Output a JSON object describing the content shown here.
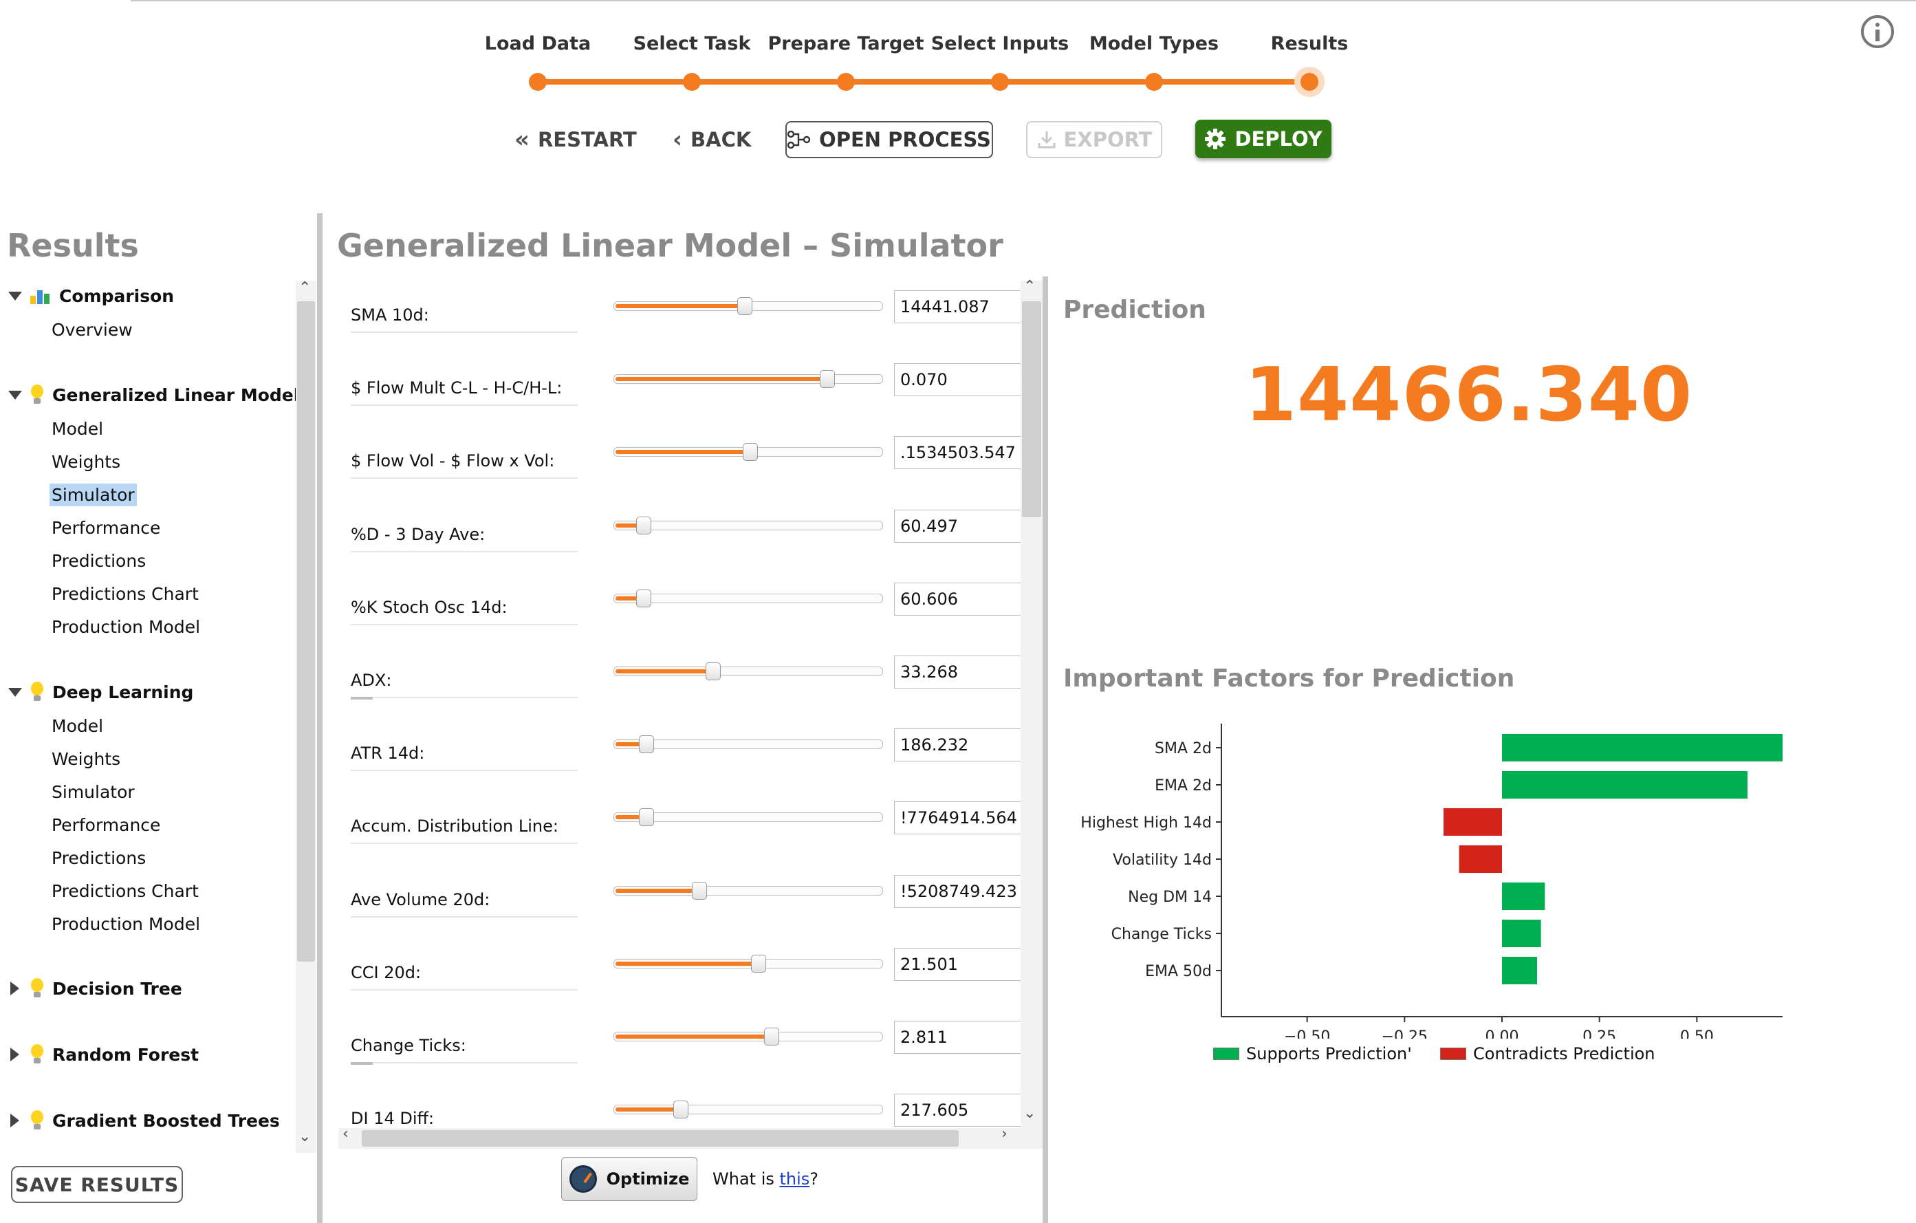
{
  "wizard": {
    "steps": [
      {
        "label": "Load Data"
      },
      {
        "label": "Select Task"
      },
      {
        "label": "Prepare Target"
      },
      {
        "label": "Select Inputs"
      },
      {
        "label": "Model Types"
      },
      {
        "label": "Results"
      }
    ],
    "current_step": "Results"
  },
  "toolbar": {
    "restart_label": "RESTART",
    "back_label": "BACK",
    "open_process_label": "OPEN PROCESS",
    "export_label": "EXPORT",
    "deploy_label": "DEPLOY",
    "accent_color": "#f47b20",
    "deploy_color": "#2f7a12"
  },
  "sidebar": {
    "title": "Results",
    "groups": [
      {
        "label": "Comparison",
        "icon": "comparison-icon",
        "expanded": true,
        "items": [
          "Overview"
        ]
      },
      {
        "label": "Generalized Linear Model",
        "icon": "lightbulb-icon",
        "expanded": true,
        "items": [
          "Model",
          "Weights",
          "Simulator",
          "Performance",
          "Predictions",
          "Predictions Chart",
          "Production Model"
        ]
      },
      {
        "label": "Deep Learning",
        "icon": "lightbulb-icon",
        "expanded": true,
        "items": [
          "Model",
          "Weights",
          "Simulator",
          "Performance",
          "Predictions",
          "Predictions Chart",
          "Production Model"
        ]
      },
      {
        "label": "Decision Tree",
        "icon": "lightbulb-icon",
        "expanded": false,
        "items": []
      },
      {
        "label": "Random Forest",
        "icon": "lightbulb-icon",
        "expanded": false,
        "items": []
      },
      {
        "label": "Gradient Boosted Trees",
        "icon": "lightbulb-icon",
        "expanded": false,
        "items": []
      }
    ],
    "selected": "Generalized Linear Model / Simulator",
    "save_label": "SAVE RESULTS"
  },
  "simulator": {
    "title": "Generalized Linear Model – Simulator",
    "attributes": [
      {
        "label": "SMA 10d:",
        "value": "14441.087",
        "slider": 0.49
      },
      {
        "label": "$ Flow Mult C-L - H-C/H-L:",
        "value": "0.070",
        "slider": 0.8
      },
      {
        "label": "$ Flow Vol - $ Flow x Vol:",
        "value": ".1534503.547",
        "slider": 0.51
      },
      {
        "label": "%D - 3 Day Ave:",
        "value": "60.497",
        "slider": 0.11
      },
      {
        "label": "%K Stoch Osc 14d:",
        "value": "60.606",
        "slider": 0.11
      },
      {
        "label": "ADX:",
        "value": "33.268",
        "slider": 0.37
      },
      {
        "label": "ATR 14d:",
        "value": "186.232",
        "slider": 0.12
      },
      {
        "label": "Accum. Distribution Line:",
        "value": "!7764914.564",
        "slider": 0.12
      },
      {
        "label": "Ave Volume 20d:",
        "value": "!5208749.423",
        "slider": 0.32
      },
      {
        "label": "CCI 20d:",
        "value": "21.501",
        "slider": 0.54
      },
      {
        "label": "Change Ticks:",
        "value": "2.811",
        "slider": 0.59
      },
      {
        "label": "DI 14 Diff:",
        "value": "217.605",
        "slider": 0.25
      }
    ],
    "optimize_label": "Optimize",
    "what_is_prefix": "What is ",
    "what_is_link": "this",
    "what_is_suffix": "?"
  },
  "prediction": {
    "heading": "Prediction",
    "value": "14466.340",
    "factors_heading": "Important Factors for Prediction"
  },
  "chart_data": {
    "type": "bar",
    "orientation": "horizontal",
    "title": "Important Factors for Prediction",
    "categories": [
      "SMA 2d",
      "EMA 2d",
      "Highest High 14d",
      "Volatility 14d",
      "Neg DM 14",
      "Change Ticks",
      "EMA 50d"
    ],
    "values": [
      0.72,
      0.63,
      -0.15,
      -0.11,
      0.11,
      0.1,
      0.09
    ],
    "xlim": [
      -0.72,
      0.72
    ],
    "xticks": [
      -0.5,
      -0.25,
      0.0,
      0.25,
      0.5
    ],
    "xtick_labels": [
      "−0.50",
      "−0.25",
      "0.00",
      "0.25",
      "0.50"
    ],
    "series": [
      {
        "name": "Supports Prediction'",
        "color": "#00b050"
      },
      {
        "name": "Contradicts Prediction",
        "color": "#d42318"
      }
    ],
    "legend_position": "bottom",
    "grid": false
  }
}
